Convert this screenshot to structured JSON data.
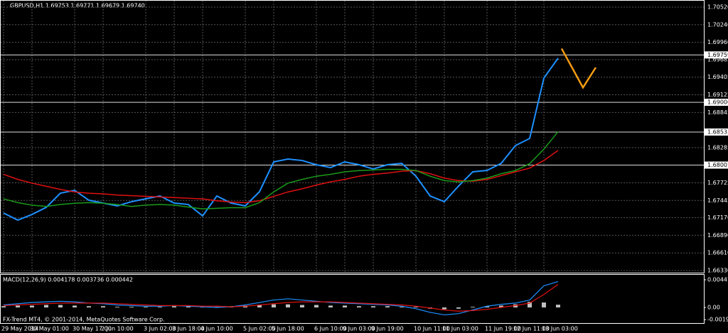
{
  "chart_data": [
    {
      "type": "line",
      "title": "GBPUSD,H1 1.69753 1.69771 1.69679 1.69740",
      "categories": [
        "29 May 2014",
        null,
        "30 May 01:00",
        null,
        null,
        "30 May 17:00",
        null,
        "2 Jun 10:00",
        null,
        null,
        "3 Jun 02:00",
        null,
        "3 Jun 18:00",
        null,
        "4 Jun 10:00",
        null,
        null,
        "5 Jun 02:00",
        null,
        "5 Jun 18:00",
        null,
        null,
        "6 Jun 10:00",
        null,
        "9 Jun 03:00",
        null,
        "9 Jun 19:00",
        null,
        null,
        "10 Jun 11:00",
        null,
        "11 Jun 03:00",
        null,
        null,
        "11 Jun 19:00",
        null,
        "12 Jun 11:00",
        null,
        "13 Jun 03:00",
        null
      ],
      "series": [
        {
          "color": "#1e90ff",
          "values": [
            1.67245,
            1.67132,
            1.67222,
            1.67335,
            1.67561,
            1.67606,
            1.67448,
            1.67403,
            1.67358,
            1.67425,
            1.67471,
            1.67516,
            1.67403,
            1.6738,
            1.67199,
            1.67516,
            1.67403,
            1.67358,
            1.67584,
            1.68058,
            1.68103,
            1.6808,
            1.68013,
            1.67968,
            1.68058,
            1.68013,
            1.67945,
            1.68013,
            1.68035,
            1.67832,
            1.67516,
            1.67425,
            1.67674,
            1.679,
            1.67922,
            1.68035,
            1.68318,
            1.68431,
            1.69391,
            1.69707
          ]
        },
        {
          "color": "#e01010",
          "values": [
            1.6786,
            1.6778,
            1.6772,
            1.6767,
            1.6762,
            1.6758,
            1.6756,
            1.6755,
            1.6753,
            1.6752,
            1.6751,
            1.675,
            1.6749,
            1.6748,
            1.6747,
            1.6744,
            1.6742,
            1.6741,
            1.6744,
            1.6751,
            1.6758,
            1.6763,
            1.6769,
            1.6774,
            1.6778,
            1.6783,
            1.6786,
            1.6788,
            1.6791,
            1.6792,
            1.6787,
            1.678,
            1.6776,
            1.6775,
            1.6778,
            1.6784,
            1.679,
            1.6796,
            1.6808,
            1.6824
          ]
        },
        {
          "color": "#1a9a1a",
          "values": [
            1.6747,
            1.6741,
            1.6737,
            1.6735,
            1.6738,
            1.674,
            1.6741,
            1.674,
            1.6738,
            1.6735,
            1.6737,
            1.6738,
            1.6737,
            1.6734,
            1.6731,
            1.6732,
            1.6733,
            1.6733,
            1.6741,
            1.6758,
            1.6772,
            1.6778,
            1.6783,
            1.6786,
            1.679,
            1.6792,
            1.6793,
            1.6794,
            1.6794,
            1.6792,
            1.6783,
            1.6776,
            1.6774,
            1.6776,
            1.678,
            1.6787,
            1.6792,
            1.6803,
            1.6826,
            1.6854
          ]
        }
      ],
      "forecast": {
        "color": "#f39c12",
        "x": [
          39.25,
          40.75,
          41.65
        ],
        "values": [
          1.6986,
          1.6924,
          1.6956
        ]
      },
      "levels": [
        1.69759,
        1.69006,
        1.68533,
        1.68007
      ],
      "ylim": [
        1.66285,
        1.70633
      ],
      "yticks": [
        {
          "value": 1.7052,
          "label": "1.70520"
        },
        {
          "value": 1.7024,
          "label": "1.70240"
        },
        {
          "value": 1.6996,
          "label": "1.69960"
        },
        1.69685,
        1.69405,
        1.69125,
        1.68845,
        1.68285,
        1.67725,
        1.67445,
        {
          "value": 1.6717,
          "label": "1.67170"
        },
        {
          "value": 1.6689,
          "label": "1.66890"
        },
        {
          "value": 1.6661,
          "label": "1.66610"
        },
        {
          "value": 1.6633,
          "label": "1.66330"
        }
      ],
      "grid": true
    },
    {
      "type": "macd",
      "title": "MACD(12,26,9) 0.004178 0.003736 0.000442",
      "annotation": "FX-Trend MT4, © 2001-2014, MetaQuotes Software Corp.",
      "series": [
        {
          "color": "#c0c0c0",
          "values": [
            0.0002,
            0.0003,
            0.0003,
            0.0004,
            0.0004,
            0.0003,
            0.0002,
            0.0002,
            0.0001,
            0.0001,
            0.0001,
            0.0001,
            0.0002,
            0.0002,
            0.0001,
            0.0001,
            0.0002,
            0.0003,
            0.0004,
            0.0005,
            0.0005,
            0.0004,
            0.0004,
            0.0003,
            0.0003,
            0.0002,
            0.0002,
            0.0002,
            0.0001,
            0.0001,
            -0.0002,
            -0.0003,
            -0.0002,
            0.0001,
            0.0002,
            0.0003,
            0.0005,
            0.0009,
            0.0008,
            0.000442
          ]
        },
        {
          "color": "#1e90ff",
          "values": [
            0.0004,
            0.0006,
            0.0008,
            0.0009,
            0.001,
            0.0009,
            0.0007,
            0.0006,
            0.0004,
            0.0003,
            0.0002,
            0.0002,
            0.0003,
            0.0002,
            0.0001,
            0.0,
            0.0001,
            0.0004,
            0.0008,
            0.0012,
            0.0014,
            0.0012,
            0.001,
            0.0008,
            0.0007,
            0.0006,
            0.0005,
            0.0004,
            0.0002,
            -0.0002,
            -0.0008,
            -0.0012,
            -0.001,
            -0.0004,
            0.0002,
            0.0005,
            0.0007,
            0.0012,
            0.0035,
            0.004178
          ]
        },
        {
          "color": "#e01010",
          "values": [
            0.0003,
            0.0004,
            0.0005,
            0.0006,
            0.0007,
            0.0007,
            0.0007,
            0.0007,
            0.0006,
            0.0005,
            0.0004,
            0.0003,
            0.0003,
            0.0003,
            0.0002,
            0.0002,
            0.0001,
            0.0002,
            0.0004,
            0.0006,
            0.0008,
            0.0009,
            0.0009,
            0.0009,
            0.0008,
            0.0007,
            0.0006,
            0.0005,
            0.0004,
            0.0002,
            -0.0001,
            -0.0004,
            -0.0006,
            -0.0005,
            -0.0003,
            0.0,
            0.0003,
            0.0007,
            0.0021,
            0.003736
          ]
        }
      ],
      "ylim": [
        -0.002526,
        0.005281
      ],
      "yticks": [
        0.004477,
        {
          "value": 0,
          "label": "0.00"
        },
        -0.001979
      ]
    }
  ]
}
